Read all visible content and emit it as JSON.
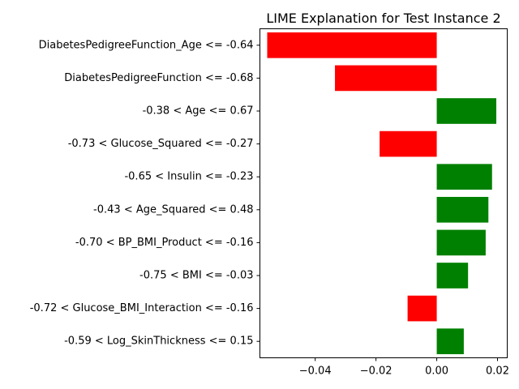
{
  "chart_data": {
    "type": "bar",
    "orientation": "horizontal",
    "title": "LIME Explanation for Test Instance 2",
    "xlabel": "",
    "ylabel": "",
    "xlim": [
      -0.0582,
      0.0232
    ],
    "xticks": [
      -0.04,
      -0.02,
      0.0,
      0.02
    ],
    "xtick_labels": [
      "−0.04",
      "−0.02",
      "0.00",
      "0.02"
    ],
    "categories": [
      "DiabetesPedigreeFunction_Age <= -0.64",
      "DiabetesPedigreeFunction <= -0.68",
      "-0.38 < Age <= 0.67",
      "-0.73 < Glucose_Squared <= -0.27",
      "-0.65 < Insulin <= -0.23",
      "-0.43 < Age_Squared <= 0.48",
      "-0.70 < BP_BMI_Product <= -0.16",
      "-0.75 < BMI <= -0.03",
      "-0.72 < Glucose_BMI_Interaction <= -0.16",
      "-0.59 < Log_SkinThickness <= 0.15"
    ],
    "values": [
      -0.0558,
      -0.0335,
      0.0196,
      -0.0188,
      0.0182,
      0.017,
      0.0161,
      0.0103,
      -0.0096,
      0.0089
    ],
    "colors": {
      "positive": "#008000",
      "negative": "#ff0000"
    },
    "grid": false,
    "legend": "none"
  }
}
